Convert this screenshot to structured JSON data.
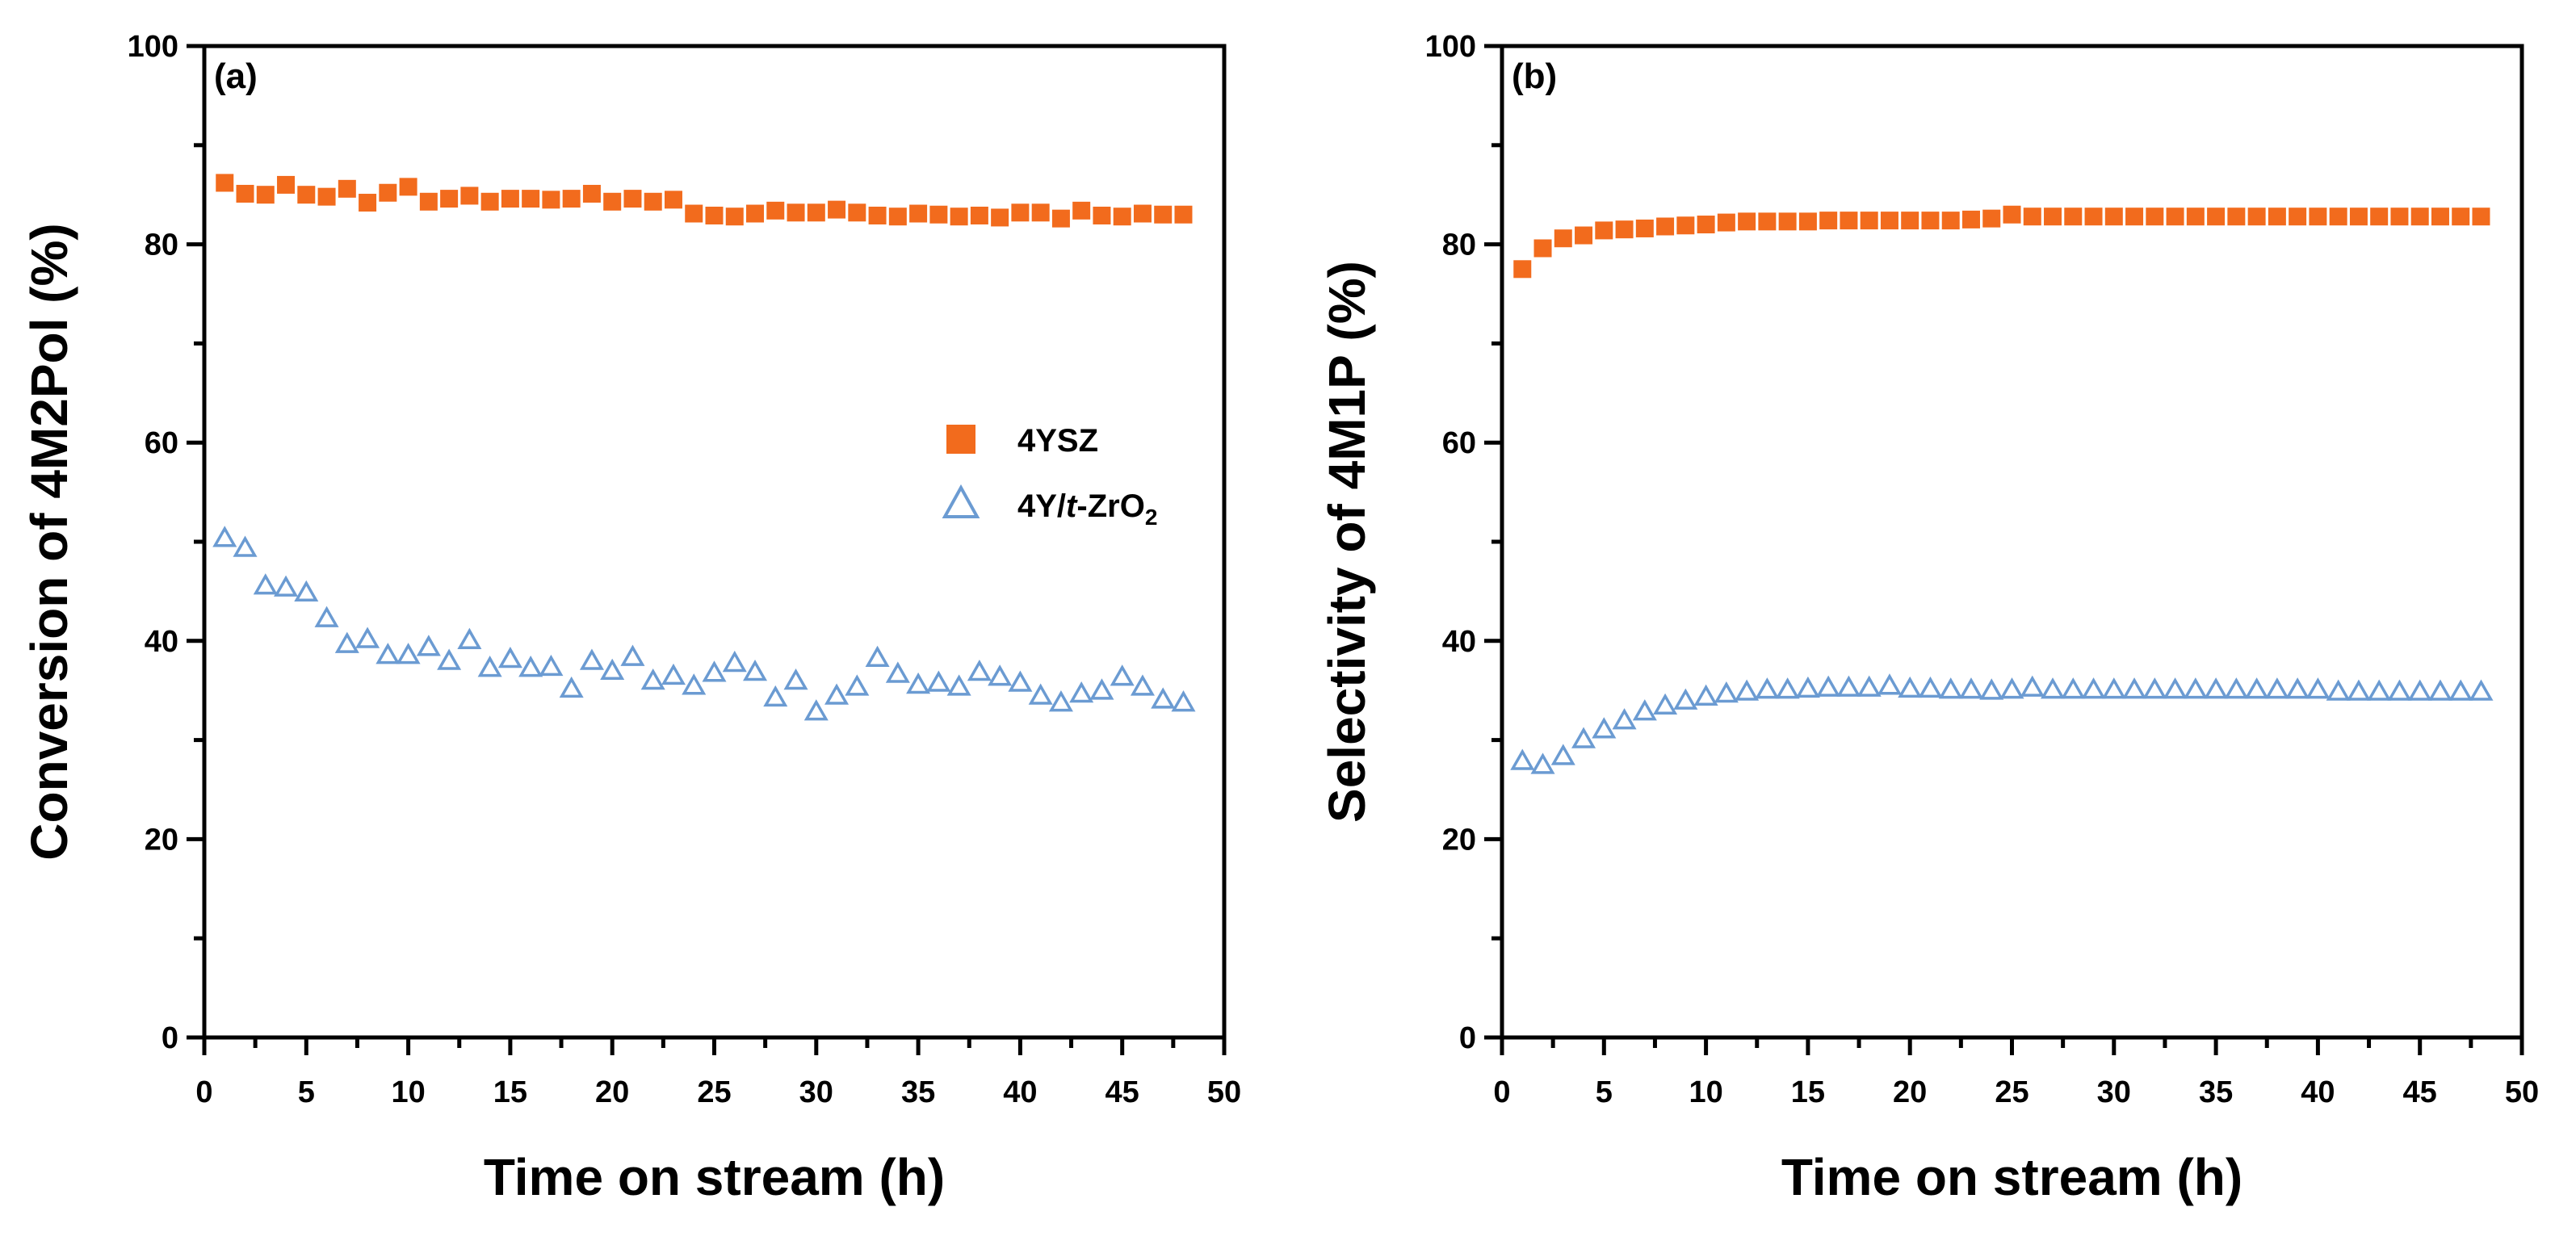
{
  "colors": {
    "series_4ysz": "#f26b1d",
    "series_4yt": "#6b9bd2",
    "axis": "#000000"
  },
  "legend": {
    "items": [
      {
        "label": "4YSZ",
        "marker": "filled-square"
      },
      {
        "label_main": "4Y/",
        "label_italic": "t",
        "label_mid": "-ZrO",
        "label_sub": "2",
        "marker": "open-triangle"
      }
    ]
  },
  "chart_data": [
    {
      "type": "scatter",
      "panel_label": "(a)",
      "title": "",
      "xlabel": "Time on stream (h)",
      "ylabel": "Conversion of 4M2Pol (%)",
      "xlim": [
        0,
        50
      ],
      "ylim": [
        0,
        100
      ],
      "xticks": [
        "0",
        "5",
        "10",
        "15",
        "20",
        "25",
        "30",
        "35",
        "40",
        "45",
        "50"
      ],
      "yticks": [
        "0",
        "20",
        "40",
        "60",
        "80",
        "100"
      ],
      "x": [
        1,
        2,
        3,
        4,
        5,
        6,
        7,
        8,
        9,
        10,
        11,
        12,
        13,
        14,
        15,
        16,
        17,
        18,
        19,
        20,
        21,
        22,
        23,
        24,
        25,
        26,
        27,
        28,
        29,
        30,
        31,
        32,
        33,
        34,
        35,
        36,
        37,
        38,
        39,
        40,
        41,
        42,
        43,
        44,
        45,
        46,
        47,
        48
      ],
      "series": [
        {
          "name": "4YSZ",
          "marker": "filled-square",
          "values": [
            86.2,
            85.1,
            85.0,
            86.0,
            85.0,
            84.8,
            85.6,
            84.2,
            85.2,
            85.8,
            84.3,
            84.6,
            84.9,
            84.3,
            84.6,
            84.6,
            84.5,
            84.6,
            85.1,
            84.3,
            84.6,
            84.3,
            84.5,
            83.1,
            82.9,
            82.8,
            83.1,
            83.4,
            83.2,
            83.2,
            83.5,
            83.2,
            82.9,
            82.8,
            83.1,
            83.0,
            82.8,
            82.9,
            82.7,
            83.2,
            83.2,
            82.6,
            83.4,
            82.9,
            82.8,
            83.1,
            83.0,
            83.0
          ]
        },
        {
          "name": "4Y/t-ZrO2",
          "marker": "open-triangle",
          "values": [
            50.3,
            49.3,
            45.5,
            45.3,
            44.8,
            42.2,
            39.6,
            40.1,
            38.5,
            38.5,
            39.3,
            37.9,
            40.0,
            37.2,
            38.1,
            37.2,
            37.3,
            35.1,
            37.9,
            36.9,
            38.3,
            35.9,
            36.4,
            35.4,
            36.7,
            37.7,
            36.8,
            34.2,
            35.9,
            32.8,
            34.4,
            35.3,
            38.2,
            36.6,
            35.5,
            35.7,
            35.3,
            36.8,
            36.3,
            35.7,
            34.4,
            33.7,
            34.6,
            34.9,
            36.3,
            35.3,
            34.0,
            33.7
          ]
        }
      ]
    },
    {
      "type": "scatter",
      "panel_label": "(b)",
      "title": "",
      "xlabel": "Time on stream (h)",
      "ylabel": "Selectivity of 4M1P (%)",
      "xlim": [
        0,
        50
      ],
      "ylim": [
        0,
        100
      ],
      "xticks": [
        "0",
        "5",
        "10",
        "15",
        "20",
        "25",
        "30",
        "35",
        "40",
        "45",
        "50"
      ],
      "yticks": [
        "0",
        "20",
        "40",
        "60",
        "80",
        "100"
      ],
      "x": [
        1,
        2,
        3,
        4,
        5,
        6,
        7,
        8,
        9,
        10,
        11,
        12,
        13,
        14,
        15,
        16,
        17,
        18,
        19,
        20,
        21,
        22,
        23,
        24,
        25,
        26,
        27,
        28,
        29,
        30,
        31,
        32,
        33,
        34,
        35,
        36,
        37,
        38,
        39,
        40,
        41,
        42,
        43,
        44,
        45,
        46,
        47,
        48
      ],
      "series": [
        {
          "name": "4YSZ",
          "marker": "filled-square",
          "values": [
            77.5,
            79.6,
            80.6,
            80.9,
            81.4,
            81.5,
            81.6,
            81.8,
            81.9,
            82.0,
            82.2,
            82.3,
            82.3,
            82.3,
            82.3,
            82.4,
            82.4,
            82.4,
            82.4,
            82.4,
            82.4,
            82.4,
            82.5,
            82.6,
            83.0,
            82.8,
            82.8,
            82.8,
            82.8,
            82.8,
            82.8,
            82.8,
            82.8,
            82.8,
            82.8,
            82.8,
            82.8,
            82.8,
            82.8,
            82.8,
            82.8,
            82.8,
            82.8,
            82.8,
            82.8,
            82.8,
            82.8,
            82.8
          ]
        },
        {
          "name": "4Y/t-ZrO2",
          "marker": "open-triangle",
          "values": [
            27.8,
            27.4,
            28.3,
            30.0,
            31.0,
            31.9,
            32.8,
            33.4,
            33.9,
            34.3,
            34.6,
            34.8,
            35.0,
            35.0,
            35.1,
            35.2,
            35.2,
            35.2,
            35.4,
            35.1,
            35.1,
            35.0,
            35.0,
            34.9,
            35.0,
            35.2,
            35.0,
            35.0,
            35.0,
            35.0,
            35.0,
            35.0,
            35.0,
            35.0,
            35.0,
            35.0,
            35.0,
            35.0,
            35.0,
            35.0,
            34.8,
            34.8,
            34.8,
            34.8,
            34.8,
            34.8,
            34.8,
            34.8
          ]
        }
      ]
    }
  ]
}
